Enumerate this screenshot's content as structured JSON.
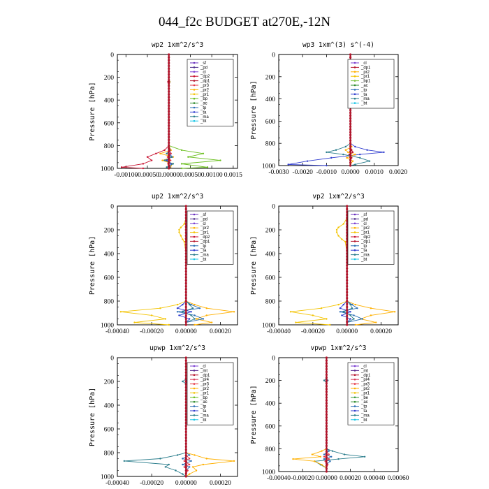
{
  "figure_title": "044_f2c  BUDGET at270E,-12N",
  "colors": {
    "sf": "#6a2fbf",
    "pd": "#4b2a8a",
    "cl": "#7b3fd1",
    "dp2": "#c8102e",
    "dp1": "#b5122a",
    "pr3": "#e63946",
    "pr2": "#ffb000",
    "pr1": "#f3c300",
    "bp": "#6abf1e",
    "ac": "#2e8b2e",
    "tp": "#2d6fb5",
    "ta": "#2f3ccf",
    "ma": "#2a7d8c",
    "bt": "#19c6e6",
    "mt": "#5b2b8f",
    "pr4": "#d93d5a",
    "bp1": "#7cc242",
    "be": "#3b9b3b"
  },
  "chart_data": [
    {
      "type": "line",
      "title": "wp2  1xm^2/s^3",
      "ylabel": "Pressure [hPa]",
      "ylim": [
        1000,
        0
      ],
      "xlim": [
        -0.0012,
        0.0016
      ],
      "xticks": [
        -0.001,
        -0.0005,
        0.0,
        0.0005,
        0.001,
        0.0015
      ],
      "xtick_labels": [
        "-0.00100",
        "-0.00050",
        "0.00000",
        "0.00050",
        "0.00100",
        "0.0015"
      ],
      "yticks": [
        0,
        200,
        400,
        600,
        800,
        1000
      ],
      "legend": [
        "_sf",
        "_pd",
        "_cl",
        "_dp2",
        "_dp1",
        "_pr3",
        "_pr2",
        "_pr1",
        "_bp",
        "_ac",
        "_tp",
        "_ta",
        "_ma",
        "_bt"
      ],
      "legend_position": "top-right",
      "pressure": [
        0,
        100,
        200,
        240,
        300,
        400,
        500,
        600,
        700,
        800,
        840,
        870,
        900,
        930,
        960,
        990,
        1000
      ],
      "series": [
        {
          "key": "bp",
          "values": [
            0,
            0,
            0,
            2e-05,
            0,
            0,
            0,
            0,
            0,
            0,
            0.0003,
            0.0008,
            0.00045,
            0.0012,
            0.0003,
            0.0009,
            0.0003
          ]
        },
        {
          "key": "dp2",
          "values": [
            0,
            0,
            0,
            -2e-05,
            0,
            0,
            0,
            0,
            0,
            0,
            -0.0001,
            -0.0003,
            -0.0005,
            -0.0004,
            -0.0006,
            -0.0011,
            -0.0006
          ]
        },
        {
          "key": "pr2",
          "values": [
            0,
            0,
            0,
            1e-05,
            0,
            0,
            0,
            0,
            0,
            0,
            5e-05,
            -0.0002,
            0.0001,
            -0.00015,
            8e-05,
            4e-05,
            0
          ]
        },
        {
          "key": "ta",
          "values": [
            0,
            0,
            0,
            0,
            0,
            0,
            0,
            0,
            0,
            0,
            2e-05,
            4e-05,
            6e-05,
            -5e-05,
            5e-05,
            2e-05,
            0
          ]
        },
        {
          "key": "ma",
          "values": [
            0,
            0,
            0,
            0,
            0,
            0,
            0,
            0,
            0,
            0,
            3e-05,
            -5e-05,
            8e-05,
            -0.0001,
            0.0001,
            -5e-05,
            0
          ]
        },
        {
          "key": "pr3",
          "values": [
            0,
            0,
            0,
            1e-05,
            0,
            0,
            0,
            0,
            0,
            0,
            2e-05,
            5e-05,
            -3e-05,
            4e-05,
            -2e-05,
            0,
            0
          ]
        }
      ]
    },
    {
      "type": "line",
      "title": "wp3  1xm^(3) s^(-4)",
      "ylabel": "Pressure [hPa]",
      "ylim": [
        1000,
        0
      ],
      "xlim": [
        -0.003,
        0.002
      ],
      "xticks": [
        -0.003,
        -0.002,
        -0.001,
        0.0,
        0.001,
        0.002
      ],
      "xtick_labels": [
        "-0.0030",
        "-0.0020",
        "-0.0010",
        "0.0000",
        "0.0010",
        "0.0020"
      ],
      "yticks": [
        0,
        200,
        400,
        600,
        800,
        1000
      ],
      "legend": [
        "_cl",
        "_dp1",
        "_pr2",
        "_pr1",
        "_bp1",
        "_ac",
        "_tp",
        "_ta",
        "_ma",
        "_bt"
      ],
      "legend_position": "top-right",
      "pressure": [
        0,
        100,
        200,
        300,
        400,
        500,
        600,
        700,
        800,
        830,
        860,
        880,
        900,
        930,
        960,
        990,
        1000
      ],
      "series": [
        {
          "key": "ta",
          "values": [
            0,
            0,
            0,
            0,
            0,
            0,
            0,
            0,
            0,
            0.0002,
            0.0007,
            0.0014,
            0.0004,
            -0.0008,
            -0.0018,
            -0.0026,
            -0.001
          ]
        },
        {
          "key": "ma",
          "values": [
            0,
            0,
            0,
            0,
            0,
            0,
            0,
            0,
            0,
            -0.0002,
            -0.0006,
            -0.001,
            -0.0003,
            0.0004,
            0.0008,
            0.0002,
            0
          ]
        },
        {
          "key": "pr2",
          "values": [
            0,
            0,
            0,
            0,
            0,
            0,
            0,
            0,
            0,
            5e-05,
            -0.0002,
            -0.0001,
            0.0002,
            -0.00015,
            0.0001,
            0,
            0
          ]
        },
        {
          "key": "dp1",
          "values": [
            0,
            0,
            0,
            0,
            0,
            0,
            0,
            0,
            0,
            0,
            5e-05,
            0.0001,
            -5e-05,
            5e-05,
            0,
            0,
            0
          ]
        }
      ]
    },
    {
      "type": "line",
      "title": "up2  1xm^2/s^3",
      "ylabel": "Pressure [hPa]",
      "ylim": [
        1000,
        0
      ],
      "xlim": [
        -0.0004,
        0.0003
      ],
      "xticks": [
        -0.0004,
        -0.0002,
        0.0,
        0.0002
      ],
      "xtick_labels": [
        "-0.00040",
        "-0.00020",
        "0.00000",
        "0.00020"
      ],
      "yticks": [
        0,
        200,
        400,
        600,
        800,
        1000
      ],
      "legend": [
        "_sf",
        "_pd",
        "_cl",
        "_pr2",
        "_pr1",
        "_dp2",
        "_dp1",
        "_tp",
        "_ta",
        "_ma",
        "_bt"
      ],
      "legend_position": "top-right",
      "pressure": [
        0,
        100,
        150,
        180,
        200,
        220,
        250,
        280,
        300,
        400,
        500,
        600,
        700,
        800,
        830,
        860,
        890,
        920,
        950,
        980,
        1000
      ],
      "series": [
        {
          "key": "pr1",
          "values": [
            0,
            0,
            -1e-05,
            -3e-05,
            -4e-05,
            -4e-05,
            -3e-05,
            -2e-05,
            -1e-05,
            0,
            0,
            0,
            0,
            0,
            -5e-05,
            -0.00015,
            -0.00038,
            -0.0002,
            -0.00012,
            -0.0003,
            -0.0001
          ]
        },
        {
          "key": "pr2",
          "values": [
            0,
            0,
            1e-05,
            2e-05,
            2e-05,
            2e-05,
            1e-05,
            1e-05,
            0,
            0,
            0,
            0,
            0,
            0,
            5e-05,
            0.00012,
            0.00028,
            0.00012,
            6e-05,
            0.00015,
            5e-05
          ]
        },
        {
          "key": "tp",
          "values": [
            0,
            0,
            1e-05,
            2e-05,
            3e-05,
            2e-05,
            1e-05,
            0,
            0,
            0,
            0,
            0,
            0,
            0,
            3e-05,
            8e-05,
            -5e-05,
            5e-05,
            0.0001,
            0,
            0
          ]
        },
        {
          "key": "ta",
          "values": [
            0,
            0,
            0,
            1e-05,
            1e-05,
            1e-05,
            0,
            0,
            0,
            0,
            0,
            0,
            0,
            0,
            -2e-05,
            -5e-05,
            3e-05,
            -4e-05,
            2e-05,
            0,
            0
          ]
        },
        {
          "key": "ma",
          "values": [
            0,
            0,
            0,
            0,
            0,
            0,
            0,
            0,
            0,
            0,
            0,
            0,
            0,
            0,
            2e-05,
            4e-05,
            -2e-05,
            3e-05,
            5e-05,
            0,
            0
          ]
        }
      ]
    },
    {
      "type": "line",
      "title": "vp2  1xm^2/s^3",
      "ylabel": "Pressure [hPa]",
      "ylim": [
        1000,
        0
      ],
      "xlim": [
        -0.0004,
        0.0003
      ],
      "xticks": [
        -0.0004,
        -0.0002,
        0.0,
        0.0002
      ],
      "xtick_labels": [
        "-0.00040",
        "-0.00020",
        "0.00000",
        "0.00020"
      ],
      "yticks": [
        0,
        200,
        400,
        600,
        800,
        1000
      ],
      "legend": [
        "_sf",
        "_pd",
        "_cl",
        "_pr2",
        "_pr1",
        "_dp2",
        "_dp1",
        "_tp",
        "_ta",
        "_ma",
        "_bt"
      ],
      "legend_position": "top-right",
      "pressure": [
        0,
        100,
        150,
        180,
        200,
        220,
        250,
        280,
        300,
        400,
        500,
        600,
        700,
        800,
        830,
        860,
        890,
        920,
        950,
        980,
        1000
      ],
      "series": [
        {
          "key": "pr1",
          "values": [
            0,
            0,
            -2e-05,
            -5e-05,
            -6e-05,
            -6e-05,
            -5e-05,
            -3e-05,
            -1e-05,
            0,
            0,
            0,
            0,
            0,
            -5e-05,
            -0.00015,
            -0.00033,
            -0.0002,
            -0.00012,
            -0.0003,
            -0.0001
          ]
        },
        {
          "key": "pr2",
          "values": [
            0,
            0,
            1e-05,
            3e-05,
            4e-05,
            3e-05,
            2e-05,
            1e-05,
            0,
            0,
            0,
            0,
            0,
            0,
            5e-05,
            0.00014,
            0.00028,
            0.00014,
            8e-05,
            0.00017,
            5e-05
          ]
        },
        {
          "key": "tp",
          "values": [
            0,
            0,
            1e-05,
            3e-05,
            4e-05,
            3e-05,
            2e-05,
            0,
            0,
            0,
            0,
            0,
            0,
            0,
            3e-05,
            6e-05,
            -4e-05,
            4e-05,
            9e-05,
            0,
            0
          ]
        },
        {
          "key": "ta",
          "values": [
            0,
            0,
            0,
            1e-05,
            1e-05,
            1e-05,
            0,
            0,
            0,
            0,
            0,
            0,
            0,
            0,
            -2e-05,
            -4e-05,
            2e-05,
            -3e-05,
            2e-05,
            0,
            0
          ]
        },
        {
          "key": "ma",
          "values": [
            0,
            0,
            0,
            0,
            0,
            0,
            0,
            0,
            0,
            0,
            0,
            0,
            0,
            0,
            2e-05,
            3e-05,
            -2e-05,
            2e-05,
            4e-05,
            0,
            0
          ]
        }
      ]
    },
    {
      "type": "line",
      "title": "upwp  1xm^2/s^3",
      "ylabel": "Pressure [hPa]",
      "ylim": [
        1000,
        0
      ],
      "xlim": [
        -0.0004,
        0.0003
      ],
      "xticks": [
        -0.0004,
        -0.0002,
        0.0,
        0.0002
      ],
      "xtick_labels": [
        "-0.00040",
        "-0.00020",
        "0.00000",
        "0.00020"
      ],
      "yticks": [
        0,
        200,
        400,
        600,
        800,
        1000
      ],
      "legend": [
        "_cl",
        "_mt",
        "_dp1",
        "_pr4",
        "_pr3",
        "_pr2",
        "_pr1",
        "_bp",
        "_ac",
        "_tp",
        "_ta",
        "_ma",
        "_bt"
      ],
      "legend_position": "top-right",
      "pressure": [
        0,
        100,
        180,
        200,
        220,
        300,
        400,
        500,
        600,
        700,
        800,
        820,
        850,
        870,
        900,
        920,
        950,
        980,
        1000
      ],
      "series": [
        {
          "key": "ma",
          "values": [
            0,
            0,
            0,
            -2e-05,
            0,
            0,
            0,
            0,
            0,
            0,
            0,
            -5e-05,
            -0.00015,
            -0.00036,
            -0.0001,
            -0.00012,
            -6e-05,
            -2e-05,
            0
          ]
        },
        {
          "key": "pr2",
          "values": [
            0,
            0,
            0,
            1e-05,
            0,
            0,
            0,
            0,
            0,
            0,
            0,
            5e-05,
            0.00012,
            0.00028,
            0.0001,
            4e-05,
            6e-05,
            2e-05,
            0
          ]
        },
        {
          "key": "tp",
          "values": [
            0,
            0,
            0,
            1e-05,
            0,
            0,
            0,
            0,
            0,
            0,
            0,
            2e-05,
            -2e-05,
            3e-05,
            -2e-05,
            2e-05,
            0,
            0,
            0
          ]
        },
        {
          "key": "pr3",
          "values": [
            0,
            0,
            0,
            0,
            0,
            0,
            0,
            0,
            0,
            0,
            0,
            0,
            2e-05,
            -1e-05,
            2e-05,
            -1e-05,
            1e-05,
            0,
            0
          ]
        }
      ]
    },
    {
      "type": "line",
      "title": "vpwp  1xm^2/s^3",
      "ylabel": "Pressure [hPa]",
      "ylim": [
        1000,
        0
      ],
      "xlim": [
        -0.0004,
        0.0006
      ],
      "xticks": [
        -0.0004,
        -0.0002,
        0.0,
        0.0002,
        0.0004,
        0.0006
      ],
      "xtick_labels": [
        "-0.00040",
        "-0.00020",
        "0.00000",
        "0.00020",
        "0.00040",
        "0.00060"
      ],
      "yticks": [
        0,
        200,
        400,
        600,
        800,
        1000
      ],
      "legend": [
        "_cl",
        "_mt",
        "_dp1",
        "_pr4",
        "_pr3",
        "_pr2",
        "_pr1",
        "_be",
        "_ac",
        "_tp",
        "_ta",
        "_ma",
        "_bt"
      ],
      "legend_position": "top-right",
      "pressure": [
        0,
        100,
        180,
        200,
        220,
        300,
        400,
        500,
        600,
        700,
        800,
        820,
        850,
        870,
        890,
        910,
        940,
        970,
        1000
      ],
      "series": [
        {
          "key": "ma",
          "values": [
            0,
            0,
            0,
            -2e-05,
            0,
            0,
            0,
            0,
            0,
            0,
            0,
            5e-05,
            0.00015,
            0.00032,
            0.0001,
            -0.0001,
            -5e-05,
            0,
            0
          ]
        },
        {
          "key": "pr2",
          "values": [
            0,
            0,
            0,
            1e-05,
            0,
            0,
            0,
            0,
            0,
            0,
            0,
            -4e-05,
            -0.00012,
            -5e-05,
            -0.00028,
            -0.0001,
            -4e-05,
            0,
            0
          ]
        },
        {
          "key": "tp",
          "values": [
            0,
            0,
            0,
            1e-05,
            0,
            0,
            0,
            0,
            0,
            0,
            0,
            2e-05,
            -2e-05,
            4e-05,
            -2e-05,
            3e-05,
            0,
            0,
            0
          ]
        },
        {
          "key": "pr3",
          "values": [
            0,
            0,
            0,
            0,
            0,
            0,
            0,
            0,
            0,
            0,
            0,
            0,
            2e-05,
            -2e-05,
            2e-05,
            -1e-05,
            1e-05,
            0,
            0
          ]
        }
      ]
    }
  ]
}
